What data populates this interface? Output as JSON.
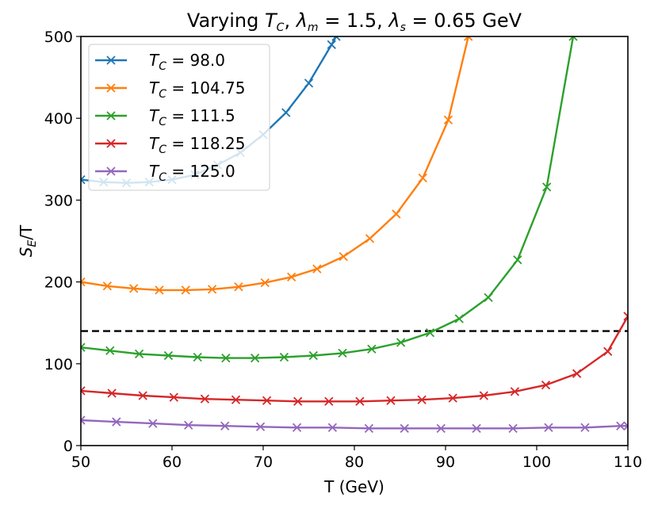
{
  "chart_data": {
    "type": "line",
    "title_parts": {
      "prefix": "Varying ",
      "tc_symbol": "T",
      "tc_sub": "C",
      "sep1": ",  ",
      "lambda_m": "λ",
      "lambda_m_sub": "m",
      "lambda_m_value": " = 1.5,  ",
      "lambda_s": "λ",
      "lambda_s_sub": "s",
      "lambda_s_value": " = 0.65 GeV"
    },
    "xlabel": "T (GeV)",
    "ylabel_parts": {
      "main": "S",
      "sub": "E",
      "rest": "/T"
    },
    "xlim": [
      50,
      110
    ],
    "ylim": [
      0,
      500
    ],
    "xticks": [
      50,
      60,
      70,
      80,
      90,
      100,
      110
    ],
    "yticks": [
      0,
      100,
      200,
      300,
      400,
      500
    ],
    "reference_line": {
      "y": 140,
      "style": "dashed",
      "color": "#000000"
    },
    "legend": {
      "position": "upper-left",
      "label_prefix": "T",
      "label_sub": "C",
      "label_eq": " = "
    },
    "series": [
      {
        "name": "98.0",
        "color": "#1f77b4",
        "x": [
          50.0,
          52.5,
          55.0,
          57.5,
          60.0,
          62.5,
          65.0,
          67.5,
          70.0,
          72.5,
          75.0,
          77.5,
          78.0
        ],
        "y": [
          325,
          322,
          321,
          322,
          325,
          331,
          343,
          358,
          380,
          407,
          443,
          490,
          500
        ]
      },
      {
        "name": "104.75",
        "color": "#ff7f0e",
        "x": [
          50.0,
          52.9,
          55.8,
          58.6,
          61.5,
          64.4,
          67.3,
          70.2,
          73.1,
          75.9,
          78.8,
          81.7,
          84.6,
          87.5,
          90.3,
          92.5
        ],
        "y": [
          200,
          195,
          192,
          190,
          190,
          191,
          194,
          199,
          206,
          216,
          231,
          253,
          283,
          327,
          398,
          500
        ]
      },
      {
        "name": "111.5",
        "color": "#2ca02c",
        "x": [
          50.0,
          53.2,
          56.4,
          59.6,
          62.8,
          65.9,
          69.1,
          72.3,
          75.5,
          78.7,
          81.9,
          85.1,
          88.3,
          91.5,
          94.7,
          97.9,
          101.1,
          104.0
        ],
        "y": [
          120,
          116,
          112,
          110,
          108,
          107,
          107,
          108,
          110,
          113,
          118,
          126,
          138,
          155,
          181,
          227,
          316,
          500
        ]
      },
      {
        "name": "118.25",
        "color": "#d62728",
        "x": [
          50.0,
          53.4,
          56.8,
          60.2,
          63.6,
          67.0,
          70.4,
          73.8,
          77.2,
          80.6,
          84.0,
          87.4,
          90.8,
          94.2,
          97.6,
          101.0,
          104.4,
          107.8,
          110.0
        ],
        "y": [
          67,
          64,
          61,
          59,
          57,
          56,
          55,
          54,
          54,
          54,
          55,
          56,
          58,
          61,
          66,
          74,
          88,
          115,
          158
        ]
      },
      {
        "name": "125.0",
        "color": "#9467bd",
        "x": [
          50.0,
          53.9,
          57.9,
          61.8,
          65.8,
          69.7,
          73.7,
          77.6,
          81.6,
          85.5,
          89.5,
          93.4,
          97.4,
          101.3,
          105.3,
          109.2,
          110.0
        ],
        "y": [
          31,
          29,
          27,
          25,
          24,
          23,
          22,
          22,
          21,
          21,
          21,
          21,
          21,
          22,
          22,
          24,
          24
        ]
      }
    ]
  }
}
